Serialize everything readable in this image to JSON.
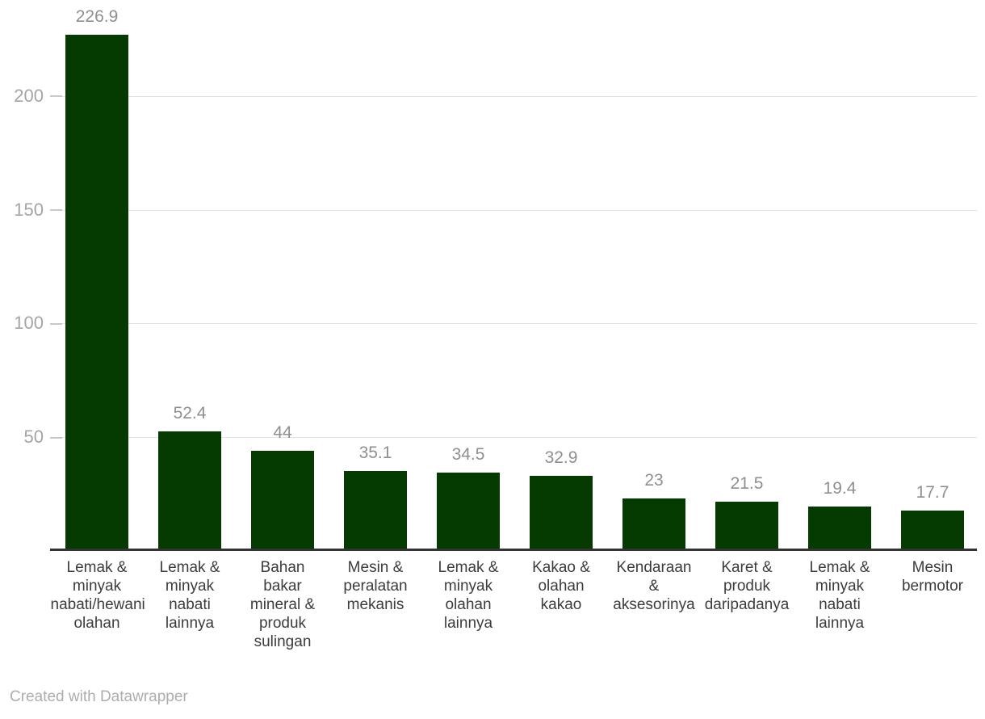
{
  "chart_data": {
    "type": "bar",
    "title": "",
    "categories": [
      "Lemak & minyak nabati/hewani olahan",
      "Lemak & minyak nabati lainnya",
      "Bahan bakar mineral & produk sulingan",
      "Mesin & peralatan mekanis",
      "Lemak & minyak olahan lainnya",
      "Kakao & olahan kakao",
      "Kendaraan & aksesorinya",
      "Karet & produk daripadanya",
      "Lemak & minyak nabati lainnya",
      "Mesin bermotor"
    ],
    "category_lines": [
      [
        "Lemak &",
        "minyak",
        "nabati/hewani",
        "olahan"
      ],
      [
        "Lemak &",
        "minyak",
        "nabati",
        "lainnya"
      ],
      [
        "Bahan",
        "bakar",
        "mineral &",
        "produk",
        "sulingan"
      ],
      [
        "Mesin &",
        "peralatan",
        "mekanis"
      ],
      [
        "Lemak &",
        "minyak",
        "olahan",
        "lainnya"
      ],
      [
        "Kakao &",
        "olahan",
        "kakao"
      ],
      [
        "Kendaraan",
        "&",
        "aksesorinya"
      ],
      [
        "Karet &",
        "produk",
        "daripadanya"
      ],
      [
        "Lemak &",
        "minyak",
        "nabati",
        "lainnya"
      ],
      [
        "Mesin",
        "bermotor"
      ]
    ],
    "values": [
      226.9,
      52.4,
      44,
      35.1,
      34.5,
      32.9,
      23,
      21.5,
      19.4,
      17.7
    ],
    "value_labels": [
      "226.9",
      "52.4",
      "44",
      "35.1",
      "34.5",
      "32.9",
      "23",
      "21.5",
      "19.4",
      "17.7"
    ],
    "yticks": [
      50,
      100,
      150,
      200
    ],
    "ytick_labels": [
      "50",
      "100",
      "150",
      "200"
    ],
    "ylim": [
      0,
      242
    ],
    "grid": true,
    "legend": "none",
    "bar_color": "#053a01"
  },
  "colors": {
    "bar": "#053a01",
    "gridline": "#e2e2e2",
    "axis_line": "#333333",
    "ytick_label": "#a5a5a5",
    "value_label": "#8f8f8f",
    "category_label": "#3c3c3c",
    "attribution": "#adadad"
  },
  "footer": {
    "attribution": "Created with Datawrapper"
  }
}
